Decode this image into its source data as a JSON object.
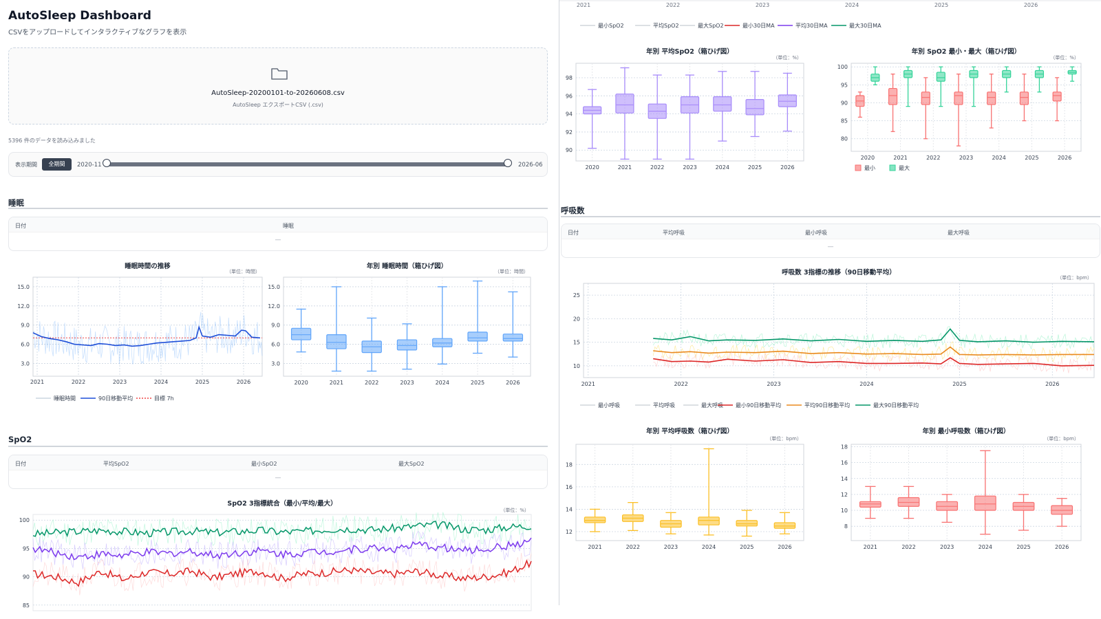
{
  "app": {
    "title": "AutoSleep Dashboard",
    "subtitle": "CSVをアップロードしてインタラクティブなグラフを表示"
  },
  "upload": {
    "icon": "folder-icon",
    "filename": "AutoSleep-20200101-to-20260608.csv",
    "hint": "AutoSleep エクスポートCSV (.csv)"
  },
  "status": {
    "loaded": "5396 件のデータを読み込みました"
  },
  "period": {
    "label": "表示期間",
    "button": "全期間",
    "start": "2020-11",
    "end": "2026-06",
    "range_fraction": [
      0,
      1
    ]
  },
  "sections": {
    "sleep": "睡眠",
    "spo2": "SpO2",
    "resp": "呼吸数"
  },
  "tables": {
    "sleep": {
      "columns": [
        "日付",
        "睡眠"
      ],
      "empty": "—"
    },
    "spo2": {
      "columns": [
        "日付",
        "平均SpO2",
        "最小SpO2",
        "最大SpO2"
      ],
      "empty": "—"
    },
    "resp": {
      "columns": [
        "日付",
        "平均呼吸",
        "最小呼吸",
        "最大呼吸"
      ],
      "empty": "—"
    }
  },
  "colors": {
    "sleep_blue": "#1d4ed8",
    "box_blue": "#60a5fa",
    "box_purple": "#a78bfa",
    "red": "#dc2626",
    "purple": "#7c3aed",
    "green": "#059669",
    "orange": "#ea8a1f",
    "box_yellow": "#fbbf24",
    "box_red": "#f87171",
    "box_green": "#34d399"
  },
  "chart_data": [
    {
      "id": "sleep_trend",
      "type": "line",
      "title": "睡眠時間の推移",
      "unit": "（単位：時間）",
      "x_ticks": [
        "2021",
        "2022",
        "2023",
        "2024",
        "2025",
        "2026"
      ],
      "y_ticks": [
        "3.0",
        "6.0",
        "9.0",
        "12.0",
        "15.0"
      ],
      "xlim": [
        2020.9,
        2026.45
      ],
      "ylim": [
        1,
        16.5
      ],
      "series": [
        {
          "name": "90日移動平均",
          "x": [
            2020.9,
            2021.1,
            2021.3,
            2021.5,
            2021.7,
            2021.9,
            2022.1,
            2022.3,
            2022.5,
            2022.7,
            2022.9,
            2023.1,
            2023.3,
            2023.5,
            2023.7,
            2023.9,
            2024.1,
            2024.3,
            2024.5,
            2024.7,
            2024.85,
            2024.92,
            2025.0,
            2025.2,
            2025.4,
            2025.6,
            2025.8,
            2025.95,
            2026.05,
            2026.2,
            2026.4
          ],
          "y": [
            7.8,
            7.2,
            6.9,
            6.7,
            6.4,
            6.0,
            5.9,
            5.8,
            6.1,
            6.0,
            5.8,
            5.9,
            5.7,
            5.8,
            6.0,
            6.2,
            6.3,
            6.4,
            6.5,
            6.6,
            7.0,
            8.7,
            7.3,
            7.1,
            7.5,
            7.4,
            7.3,
            8.2,
            8.1,
            7.1,
            7.0
          ]
        }
      ],
      "target": 7,
      "legend": [
        "睡眠時間",
        "90日移動平均",
        "目標 7h"
      ]
    },
    {
      "id": "sleep_box",
      "type": "box",
      "title": "年別 睡眠時間（箱ひげ図）",
      "unit": "（単位：時間）",
      "categories": [
        "2020",
        "2021",
        "2022",
        "2023",
        "2024",
        "2025",
        "2026"
      ],
      "y_ticks": [
        "3.0",
        "6.0",
        "9.0",
        "12.0",
        "15.0"
      ],
      "ylim": [
        1,
        16.5
      ],
      "boxes": [
        [
          4.8,
          6.7,
          7.5,
          8.5,
          11.5
        ],
        [
          1.8,
          5.3,
          6.3,
          7.5,
          15.0
        ],
        [
          1.8,
          4.7,
          5.6,
          6.5,
          10.1
        ],
        [
          2.1,
          5.1,
          5.8,
          6.7,
          9.2
        ],
        [
          2.9,
          5.6,
          6.2,
          6.9,
          15.0
        ],
        [
          4.6,
          6.5,
          7.0,
          7.9,
          15.9
        ],
        [
          4.0,
          6.5,
          6.9,
          7.6,
          14.2
        ]
      ]
    },
    {
      "id": "spo2_trend",
      "type": "line",
      "title": "SpO2 3指標統合（最小/平均/最大）",
      "unit": "（単位：%）",
      "y_ticks": [
        "85",
        "90",
        "95",
        "100"
      ],
      "x_ticks": [
        "2021",
        "2022",
        "2023",
        "2024",
        "2025",
        "2026"
      ],
      "ylim": [
        84,
        101
      ],
      "series": [
        {
          "name": "最大30日MA",
          "y": [
            97.5,
            97.8,
            98.0,
            98.2,
            98.0,
            97.7,
            97.9,
            98.1,
            97.8,
            98.0,
            98.2,
            97.9,
            98.0,
            98.4,
            98.5,
            98.3,
            98.6,
            99.0,
            99.2,
            98.4,
            98.3,
            98.8,
            99.0
          ]
        },
        {
          "name": "平均30日MA",
          "y": [
            95.0,
            94.2,
            93.5,
            94.0,
            93.7,
            94.3,
            94.1,
            94.5,
            93.8,
            94.2,
            94.6,
            94.0,
            94.3,
            94.5,
            94.8,
            95.1,
            94.9,
            95.6,
            95.2,
            94.6,
            94.9,
            95.5,
            96.3
          ]
        },
        {
          "name": "最小30日MA",
          "y": [
            90.5,
            90.0,
            89.0,
            91.0,
            89.5,
            90.8,
            90.5,
            91.0,
            89.8,
            90.6,
            91.0,
            89.7,
            90.5,
            90.8,
            91.2,
            90.7,
            90.5,
            91.0,
            90.2,
            89.7,
            90.0,
            90.8,
            92.5
          ]
        }
      ]
    },
    {
      "id": "spo2_avg_box",
      "type": "box",
      "title": "年別 平均SpO2（箱ひげ図）",
      "unit": "（単位：%）",
      "categories": [
        "2020",
        "2021",
        "2022",
        "2023",
        "2024",
        "2025",
        "2026"
      ],
      "y_ticks": [
        "90",
        "92",
        "94",
        "96",
        "98"
      ],
      "ylim": [
        88.8,
        99.6
      ],
      "boxes": [
        [
          90.2,
          94.0,
          94.4,
          94.8,
          96.7
        ],
        [
          89.0,
          94.1,
          95.0,
          96.2,
          99.1
        ],
        [
          89.0,
          93.5,
          94.3,
          95.1,
          98.3
        ],
        [
          89.0,
          94.1,
          95.0,
          95.9,
          98.3
        ],
        [
          91.0,
          94.3,
          95.0,
          95.9,
          98.7
        ],
        [
          91.5,
          93.9,
          94.6,
          95.6,
          98.7
        ],
        [
          92.1,
          94.8,
          95.4,
          96.1,
          98.5
        ]
      ]
    },
    {
      "id": "spo2_minmax_box",
      "type": "box",
      "title": "年別 SpO2 最小・最大（箱ひげ図）",
      "unit": "（単位：%）",
      "categories": [
        "2020",
        "2021",
        "2022",
        "2023",
        "2024",
        "2025",
        "2026"
      ],
      "y_ticks": [
        "80",
        "85",
        "90",
        "95",
        "100"
      ],
      "ylim": [
        76.5,
        101
      ],
      "legend": [
        "最小",
        "最大"
      ],
      "boxes_min": [
        [
          86,
          89,
          90.5,
          92,
          93
        ],
        [
          82,
          89.5,
          92,
          94,
          98
        ],
        [
          80,
          89.5,
          91.5,
          93,
          97
        ],
        [
          78,
          89.5,
          92,
          93,
          98
        ],
        [
          83,
          89.5,
          91.5,
          93,
          98
        ],
        [
          85,
          89.5,
          91.5,
          93,
          98
        ],
        [
          85,
          90.5,
          92,
          93,
          97
        ]
      ],
      "boxes_max": [
        [
          95,
          96,
          97,
          98,
          100
        ],
        [
          89,
          97,
          98,
          99,
          100
        ],
        [
          89,
          96,
          97,
          98.5,
          100
        ],
        [
          89,
          97,
          98,
          99,
          100
        ],
        [
          93,
          97,
          98,
          99,
          100
        ],
        [
          93,
          97,
          98,
          99,
          100
        ],
        [
          96,
          98,
          98.5,
          99,
          100
        ]
      ]
    },
    {
      "id": "resp_trend",
      "type": "line",
      "title": "呼吸数 3指標の推移（90日移動平均）",
      "unit": "（単位：bpm）",
      "y_ticks": [
        "10",
        "15",
        "20",
        "25"
      ],
      "x_ticks": [
        "2021",
        "2022",
        "2023",
        "2024",
        "2025",
        "2026"
      ],
      "ylim": [
        7.5,
        27.5
      ],
      "series": [
        {
          "name": "最大90日移動平均",
          "x": [
            2021.7,
            2021.9,
            2022.1,
            2022.3,
            2022.5,
            2022.8,
            2023.1,
            2023.4,
            2023.7,
            2024.0,
            2024.3,
            2024.6,
            2024.8,
            2024.9,
            2025.0,
            2025.2,
            2025.5,
            2025.8,
            2026.1,
            2026.45
          ],
          "y": [
            15.8,
            15.5,
            16.2,
            15.3,
            15.5,
            15.4,
            15.7,
            15.3,
            15.6,
            15.2,
            15.4,
            15.2,
            15.5,
            17.8,
            15.4,
            15.1,
            15.3,
            15.0,
            15.2,
            15.1
          ]
        },
        {
          "name": "平均90日移動平均",
          "x": [
            2021.7,
            2021.9,
            2022.1,
            2022.3,
            2022.5,
            2022.8,
            2023.1,
            2023.4,
            2023.7,
            2024.0,
            2024.3,
            2024.6,
            2024.8,
            2024.9,
            2025.0,
            2025.2,
            2025.5,
            2025.8,
            2026.1,
            2026.45
          ],
          "y": [
            13.2,
            12.8,
            13.0,
            12.7,
            12.9,
            12.8,
            13.1,
            12.6,
            12.8,
            12.5,
            12.6,
            12.4,
            12.5,
            14.0,
            12.4,
            12.3,
            12.4,
            12.3,
            12.4,
            12.4
          ]
        },
        {
          "name": "最小90日移動平均",
          "x": [
            2021.7,
            2021.9,
            2022.1,
            2022.3,
            2022.5,
            2022.8,
            2023.1,
            2023.4,
            2023.7,
            2024.0,
            2024.3,
            2024.6,
            2024.8,
            2024.9,
            2025.0,
            2025.2,
            2025.5,
            2025.8,
            2026.1,
            2026.45
          ],
          "y": [
            11.5,
            10.9,
            11.0,
            10.8,
            11.4,
            11.0,
            11.3,
            10.7,
            10.9,
            10.5,
            10.5,
            10.6,
            10.4,
            11.7,
            10.5,
            10.3,
            10.4,
            10.5,
            10.0,
            10.1
          ]
        }
      ],
      "legend": [
        "最小呼吸",
        "平均呼吸",
        "最大呼吸",
        "最小90日移動平均",
        "平均90日移動平均",
        "最大90日移動平均"
      ]
    },
    {
      "id": "resp_avg_box",
      "type": "box",
      "title": "年別 平均呼吸数（箱ひげ図）",
      "unit": "（単位：bpm）",
      "categories": [
        "2021",
        "2022",
        "2023",
        "2024",
        "2025",
        "2026"
      ],
      "y_ticks": [
        "12",
        "14",
        "16",
        "18"
      ],
      "ylim": [
        11.2,
        19.8
      ],
      "boxes": [
        [
          12.0,
          12.8,
          13.0,
          13.3,
          14.0
        ],
        [
          12.1,
          12.9,
          13.2,
          13.5,
          14.6
        ],
        [
          11.8,
          12.4,
          12.7,
          13.0,
          13.7
        ],
        [
          11.7,
          12.6,
          13.0,
          13.3,
          19.4
        ],
        [
          11.6,
          12.5,
          12.7,
          13.0,
          13.9
        ],
        [
          11.8,
          12.3,
          12.5,
          12.8,
          13.7
        ]
      ]
    },
    {
      "id": "resp_min_box",
      "type": "box",
      "title": "年別 最小呼吸数（箱ひげ図）",
      "unit": "（単位：bpm）",
      "categories": [
        "2021",
        "2022",
        "2023",
        "2024",
        "2025",
        "2026"
      ],
      "y_ticks": [
        "8",
        "10",
        "12",
        "14",
        "16",
        "18"
      ],
      "ylim": [
        6.2,
        18.3
      ],
      "boxes": [
        [
          9.0,
          10.4,
          10.8,
          11.1,
          13.0
        ],
        [
          9.0,
          10.5,
          11.0,
          11.6,
          13.0
        ],
        [
          8.5,
          10.0,
          10.5,
          11.1,
          12.0
        ],
        [
          7.0,
          10.0,
          10.8,
          11.8,
          17.5
        ],
        [
          7.5,
          10.0,
          10.5,
          11.0,
          12.0
        ],
        [
          8.0,
          9.5,
          10.0,
          10.6,
          11.5
        ]
      ]
    }
  ],
  "spo2_legend": [
    "最小SpO2",
    "平均SpO2",
    "最大SpO2",
    "最小30日MA",
    "平均30日MA",
    "最大30日MA"
  ],
  "spo2_top_axis": [
    "2021",
    "2022",
    "2023",
    "2024",
    "2025",
    "2026"
  ]
}
